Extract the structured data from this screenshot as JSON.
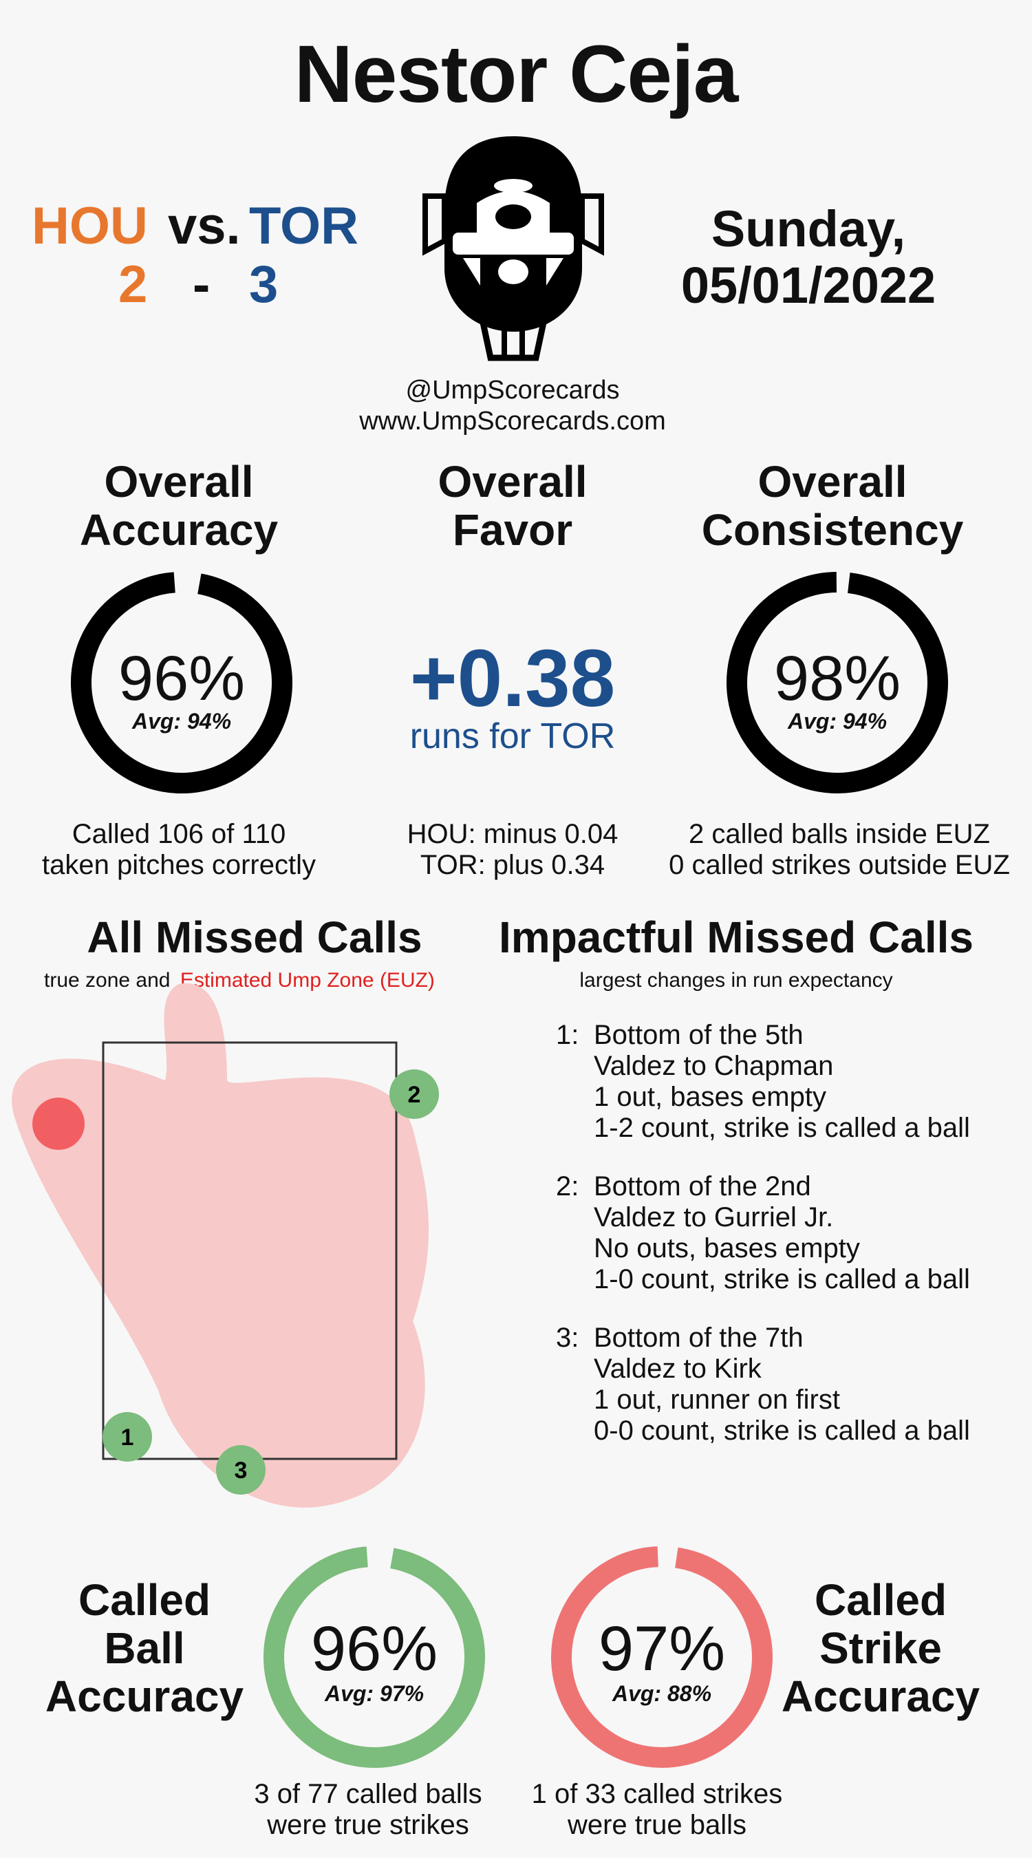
{
  "umpire_name": "Nestor Ceja",
  "game": {
    "away_team": "HOU",
    "home_team": "TOR",
    "vs": "vs.",
    "away_score": "2",
    "home_score": "3",
    "dash": "-",
    "day": "Sunday,",
    "date": "05/01/2022",
    "away_color": "#e8772e",
    "home_color": "#1d4f8c"
  },
  "credits": {
    "handle": "@UmpScorecards",
    "website": "www.UmpScorecards.com"
  },
  "overall": {
    "accuracy": {
      "title_line1": "Overall",
      "title_line2": "Accuracy",
      "value": "96%",
      "avg": "Avg: 94%",
      "percent": 96,
      "desc_line1": "Called 106 of 110",
      "desc_line2": "taken pitches correctly"
    },
    "favor": {
      "title_line1": "Overall",
      "title_line2": "Favor",
      "value": "+0.38",
      "unit": "runs for TOR",
      "desc_line1": "HOU: minus 0.04",
      "desc_line2": "TOR: plus 0.34"
    },
    "consistency": {
      "title_line1": "Overall",
      "title_line2": "Consistency",
      "value": "98%",
      "avg": "Avg: 94%",
      "percent": 98,
      "desc_line1": "2 called balls inside EUZ",
      "desc_line2": "0 called strikes outside EUZ"
    }
  },
  "missed_calls": {
    "title": "All Missed Calls",
    "subtitle_plain": "true zone and",
    "subtitle_red": "Estimated Ump Zone (EUZ)",
    "markers": [
      {
        "label": "1",
        "color": "#7cbc7c"
      },
      {
        "label": "2",
        "color": "#7cbc7c"
      },
      {
        "label": "3",
        "color": "#7cbc7c"
      },
      {
        "label": "",
        "color": "#f25f62"
      }
    ]
  },
  "impactful": {
    "title": "Impactful Missed Calls",
    "subtitle": "largest changes in run expectancy",
    "items": [
      {
        "num": "1:",
        "line1": "Bottom of the 5th",
        "line2": "Valdez to Chapman",
        "line3": "1 out, bases empty",
        "line4": "1-2 count, strike is called a ball"
      },
      {
        "num": "2:",
        "line1": "Bottom of the 2nd",
        "line2": "Valdez to Gurriel Jr.",
        "line3": "No outs, bases empty",
        "line4": "1-0 count, strike is called a ball"
      },
      {
        "num": "3:",
        "line1": "Bottom of the 7th",
        "line2": "Valdez to Kirk",
        "line3": "1 out, runner on first",
        "line4": "0-0 count, strike is called a ball"
      }
    ]
  },
  "called_ball": {
    "title_line1": "Called",
    "title_line2": "Ball",
    "title_line3": "Accuracy",
    "value": "96%",
    "avg": "Avg: 97%",
    "percent": 96,
    "color": "#7cbc7c",
    "desc_line1": "3 of 77 called balls",
    "desc_line2": "were true strikes"
  },
  "called_strike": {
    "title_line1": "Called",
    "title_line2": "Strike",
    "title_line3": "Accuracy",
    "value": "97%",
    "avg": "Avg: 88%",
    "percent": 97,
    "color": "#ee7474",
    "desc_line1": "1 of 33 called strikes",
    "desc_line2": "were true balls"
  },
  "colors": {
    "favor_blue": "#1d4f8c",
    "ring_black": "#000000",
    "euz_fill": "#f7c9c9",
    "euz_label_red": "#e0201f"
  }
}
